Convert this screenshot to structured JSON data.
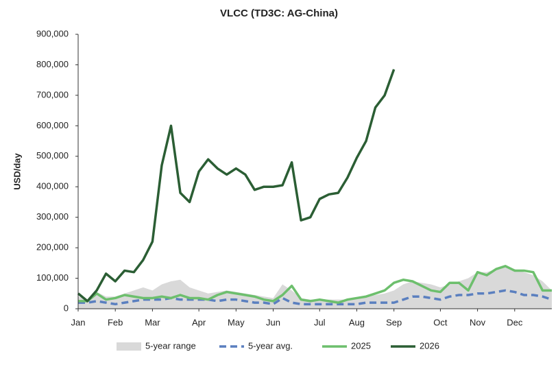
{
  "chart_data": {
    "type": "line",
    "title": "VLCC (TD3C: AG-China)",
    "y_label": "USD/day",
    "categories": [
      "Jan",
      null,
      null,
      null,
      "Feb",
      null,
      null,
      null,
      "Mar",
      null,
      null,
      null,
      null,
      "Apr",
      null,
      null,
      null,
      "May",
      null,
      null,
      null,
      "Jun",
      null,
      null,
      null,
      null,
      "Jul",
      null,
      null,
      null,
      "Aug",
      null,
      null,
      null,
      "Sep",
      null,
      null,
      null,
      null,
      "Oct",
      null,
      null,
      null,
      "Nov",
      null,
      null,
      null,
      "Dec",
      null,
      null,
      null,
      null
    ],
    "ylim": [
      0,
      900000
    ],
    "yticks": [
      0,
      {
        "value": 100000,
        "label": "100,000"
      },
      {
        "value": 200000,
        "label": "200,000"
      },
      {
        "value": 300000,
        "label": "300,000"
      },
      {
        "value": 400000,
        "label": "400,000"
      },
      {
        "value": 500000,
        "label": "500,000"
      },
      {
        "value": 600000,
        "label": "600,000"
      },
      {
        "value": 700000,
        "label": "700,000"
      },
      {
        "value": 800000,
        "label": "800,000"
      },
      {
        "value": 900000,
        "label": "900,000"
      }
    ],
    "grid": false,
    "legend": "bottom",
    "series": [
      {
        "name": "5-year range",
        "color": "#d9d9d9",
        "style": "area",
        "values": [
          40000,
          30000,
          55000,
          40000,
          40000,
          50000,
          60000,
          70000,
          60000,
          80000,
          90000,
          95000,
          70000,
          60000,
          50000,
          55000,
          60000,
          55000,
          50000,
          45000,
          40000,
          35000,
          80000,
          60000,
          35000,
          30000,
          30000,
          30000,
          30000,
          30000,
          35000,
          40000,
          45000,
          50000,
          60000,
          80000,
          90000,
          85000,
          80000,
          70000,
          80000,
          90000,
          100000,
          120000,
          120000,
          130000,
          140000,
          130000,
          120000,
          110000,
          90000,
          60000
        ]
      },
      {
        "name": "5-year avg.",
        "color": "#5a7fbf",
        "style": "dashed",
        "values": [
          20000,
          20000,
          25000,
          20000,
          15000,
          20000,
          25000,
          30000,
          30000,
          30000,
          35000,
          30000,
          30000,
          30000,
          30000,
          25000,
          30000,
          30000,
          25000,
          20000,
          20000,
          15000,
          35000,
          20000,
          15000,
          15000,
          15000,
          15000,
          15000,
          15000,
          15000,
          20000,
          20000,
          20000,
          20000,
          30000,
          40000,
          40000,
          35000,
          30000,
          40000,
          45000,
          45000,
          50000,
          50000,
          55000,
          60000,
          55000,
          45000,
          45000,
          40000,
          30000
        ]
      },
      {
        "name": "2025",
        "color": "#6dbf6d",
        "style": "solid",
        "values": [
          25000,
          25000,
          50000,
          30000,
          35000,
          45000,
          40000,
          35000,
          35000,
          40000,
          35000,
          45000,
          35000,
          35000,
          30000,
          45000,
          55000,
          50000,
          45000,
          40000,
          30000,
          25000,
          45000,
          75000,
          30000,
          25000,
          30000,
          25000,
          20000,
          30000,
          35000,
          40000,
          50000,
          60000,
          85000,
          95000,
          90000,
          75000,
          60000,
          55000,
          85000,
          85000,
          60000,
          120000,
          110000,
          130000,
          140000,
          125000,
          125000,
          120000,
          60000,
          60000
        ]
      },
      {
        "name": "2026",
        "color": "#2b5e34",
        "style": "solid",
        "values": [
          50000,
          25000,
          60000,
          115000,
          90000,
          125000,
          120000,
          160000,
          220000,
          470000,
          600000,
          380000,
          350000,
          450000,
          490000,
          460000,
          440000,
          460000,
          440000,
          390000,
          400000,
          400000,
          405000,
          480000,
          290000,
          300000,
          360000,
          375000,
          380000,
          430000,
          495000,
          550000,
          660000,
          700000,
          785000,
          null,
          null,
          null,
          null,
          null,
          null,
          null,
          null,
          null,
          null,
          null,
          null,
          null,
          null,
          null,
          null,
          null
        ]
      }
    ]
  }
}
